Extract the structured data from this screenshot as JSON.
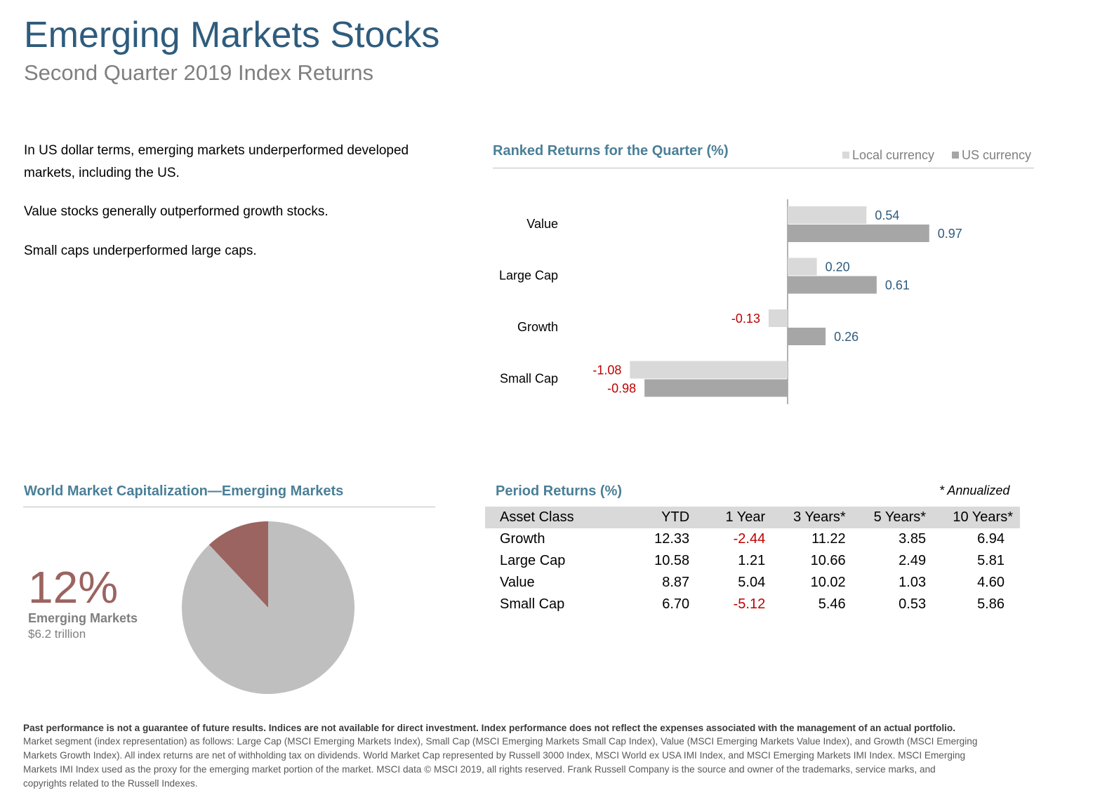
{
  "header": {
    "title": "Emerging Markets Stocks",
    "subtitle": "Second Quarter 2019 Index Returns"
  },
  "bullets": [
    "In US dollar terms, emerging markets underperformed developed markets, including the US.",
    "Value stocks generally outperformed growth stocks.",
    "Small caps underperformed large caps."
  ],
  "colors": {
    "title": "#2f5c7d",
    "section_title": "#4a7f97",
    "local_currency": "#d9d9d9",
    "us_currency": "#a6a6a6",
    "positive_label": "#2f5c7d",
    "negative_label": "#c00000",
    "pie_emerging": "#9b6460",
    "pie_rest": "#bfbfbf"
  },
  "chart_data": [
    {
      "type": "bar",
      "orientation": "horizontal",
      "title": "Ranked Returns for the Quarter (%)",
      "categories": [
        "Value",
        "Large Cap",
        "Growth",
        "Small Cap"
      ],
      "series": [
        {
          "name": "Local currency",
          "values": [
            0.54,
            0.2,
            -0.13,
            -1.08
          ],
          "labels": [
            "0.54",
            "0.20",
            "-0.13",
            "-1.08"
          ]
        },
        {
          "name": "US currency",
          "values": [
            0.97,
            0.61,
            0.26,
            -0.98
          ],
          "labels": [
            "0.97",
            "0.61",
            "0.26",
            "-0.98"
          ]
        }
      ],
      "legend": "top-right",
      "grid": false
    },
    {
      "type": "pie",
      "title": "World Market Capitalization—Emerging Markets",
      "slices": [
        {
          "name": "Emerging Markets",
          "value": 12
        },
        {
          "name": "",
          "value": 88
        }
      ],
      "highlight": {
        "percent_label": "12%",
        "name": "Emerging Markets",
        "value_label": "$6.2 trillion"
      }
    },
    {
      "type": "table",
      "title": "Period Returns (%)",
      "note": "* Annualized",
      "columns": [
        "Asset Class",
        "YTD",
        "1 Year",
        "3 Years*",
        "5 Years*",
        "10 Years*"
      ],
      "rows": [
        [
          "Growth",
          "12.33",
          "-2.44",
          "11.22",
          "3.85",
          "6.94"
        ],
        [
          "Large Cap",
          "10.58",
          "1.21",
          "10.66",
          "2.49",
          "5.81"
        ],
        [
          "Value",
          "8.87",
          "5.04",
          "10.02",
          "1.03",
          "4.60"
        ],
        [
          "Small Cap",
          "6.70",
          "-5.12",
          "5.46",
          "0.53",
          "5.86"
        ]
      ]
    }
  ],
  "footer": {
    "bold": "Past performance is not a guarantee of future results. Indices are not available for direct investment. Index performance does not reflect the expenses associated with the management of an actual portfolio.",
    "text": "Market segment (index representation) as follows: Large Cap (MSCI Emerging Markets Index), Small Cap (MSCI Emerging Markets Small Cap Index), Value (MSCI Emerging Markets Value Index), and Growth (MSCI Emerging Markets Growth Index). All index returns are net of withholding tax on dividends. World Market Cap represented by Russell 3000 Index, MSCI World ex USA IMI Index, and MSCI Emerging Markets IMI Index. MSCI Emerging Markets IMI Index used as the proxy for the emerging market portion of the market. MSCI data © MSCI 2019, all rights reserved. Frank Russell Company is the source and owner of the trademarks, service marks, and copyrights related to the Russell Indexes."
  }
}
